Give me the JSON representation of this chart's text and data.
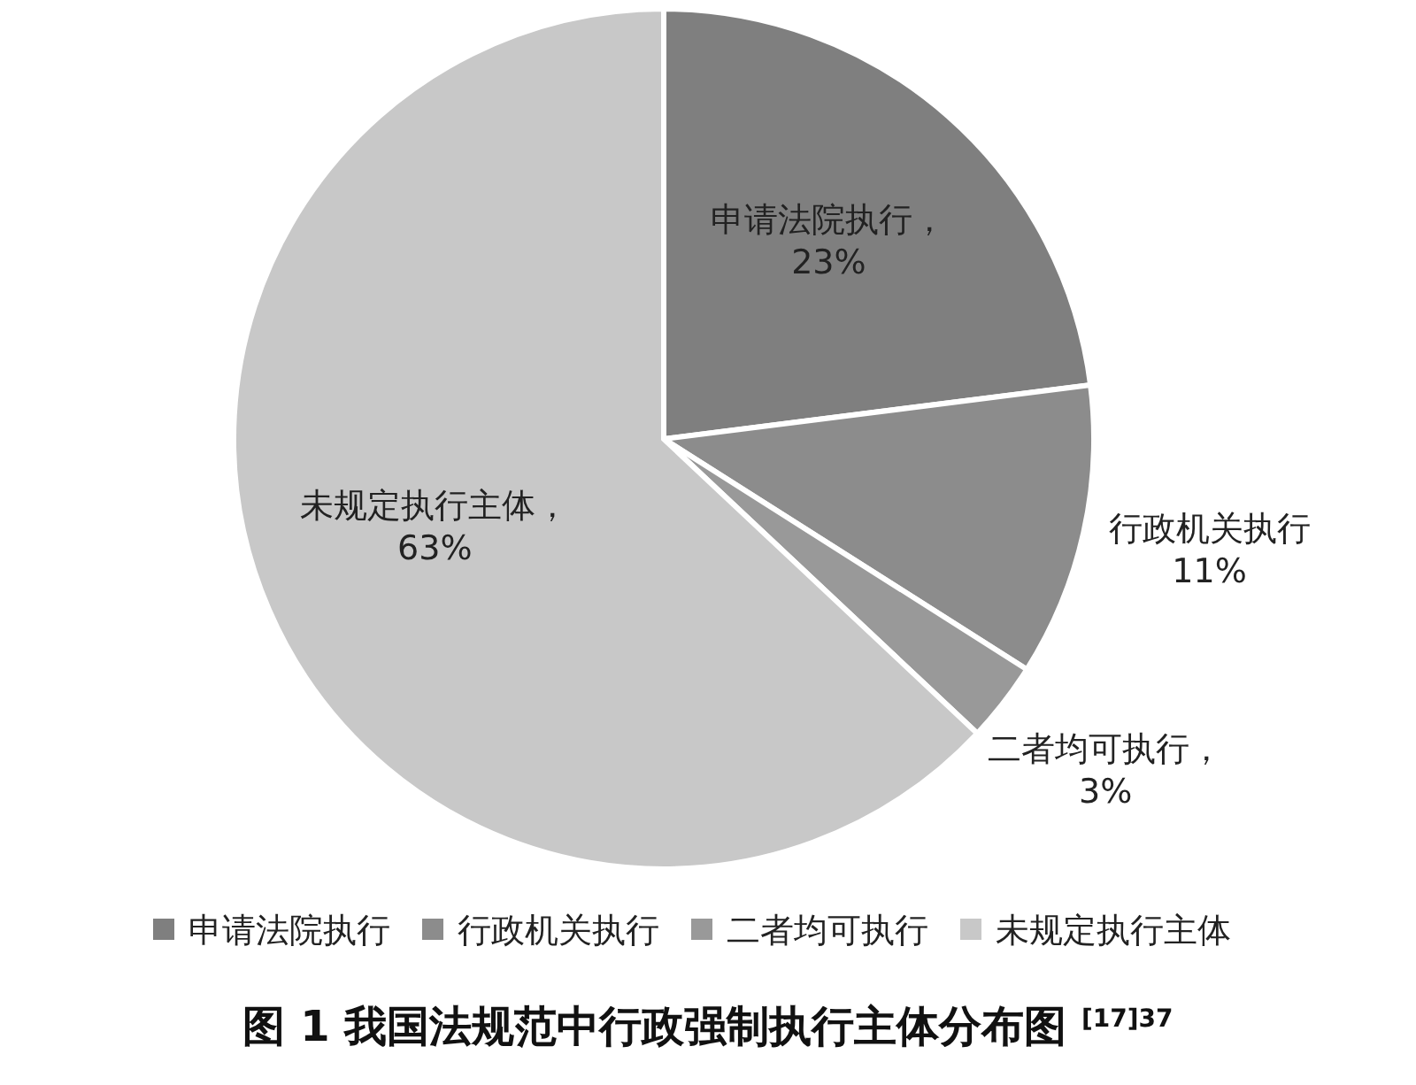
{
  "chart_data": {
    "type": "pie",
    "title": "图 1  我国法规范中行政强制执行主体分布图 $^{[17]37}$",
    "categories": [
      "申请法院执行",
      "行政机关执行",
      "二者均可执行",
      "未规定执行主体"
    ],
    "values": [
      23,
      11,
      3,
      63
    ],
    "colors": [
      "#7f7f7f",
      "#8c8c8c",
      "#999999",
      "#c8c8c8"
    ],
    "value_labels": [
      "申请法院执行，\n23%",
      "行政机关执行\n11%",
      "二者均可执行，\n3%",
      "未规定执行主体，\n63%"
    ],
    "legend": "bottom"
  }
}
